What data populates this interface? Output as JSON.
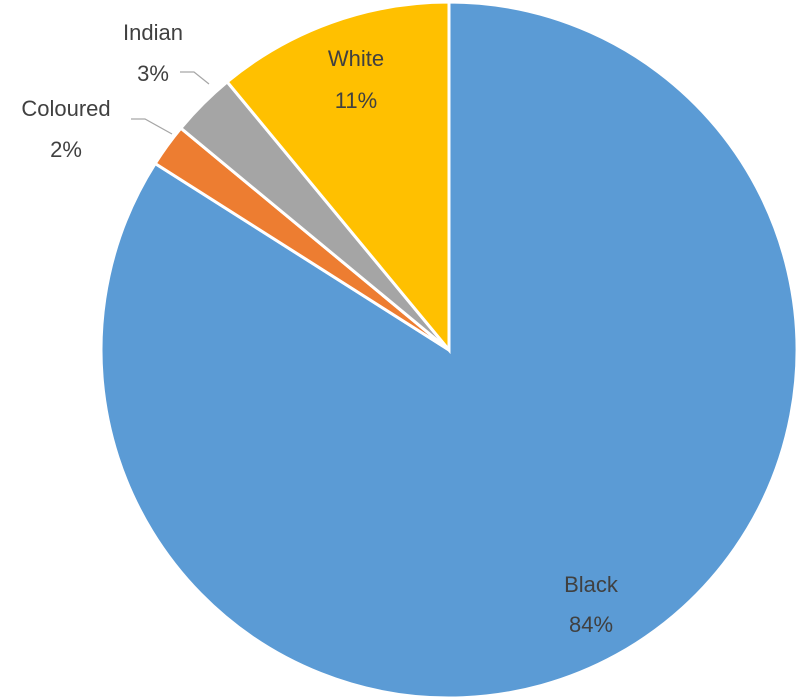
{
  "chart_data": {
    "type": "pie",
    "title": "",
    "start_angle_deg": 0,
    "direction": "clockwise",
    "slices": [
      {
        "name": "Black",
        "value": 84,
        "label": "84%",
        "color": "#5B9BD5"
      },
      {
        "name": "Coloured",
        "value": 2,
        "label": "2%",
        "color": "#ED7D31"
      },
      {
        "name": "Indian",
        "value": 3,
        "label": "3%",
        "color": "#A5A5A5"
      },
      {
        "name": "White",
        "value": 11,
        "label": "11%",
        "color": "#FFC000"
      }
    ],
    "data_labels": "category-and-percent",
    "legend": "none"
  }
}
